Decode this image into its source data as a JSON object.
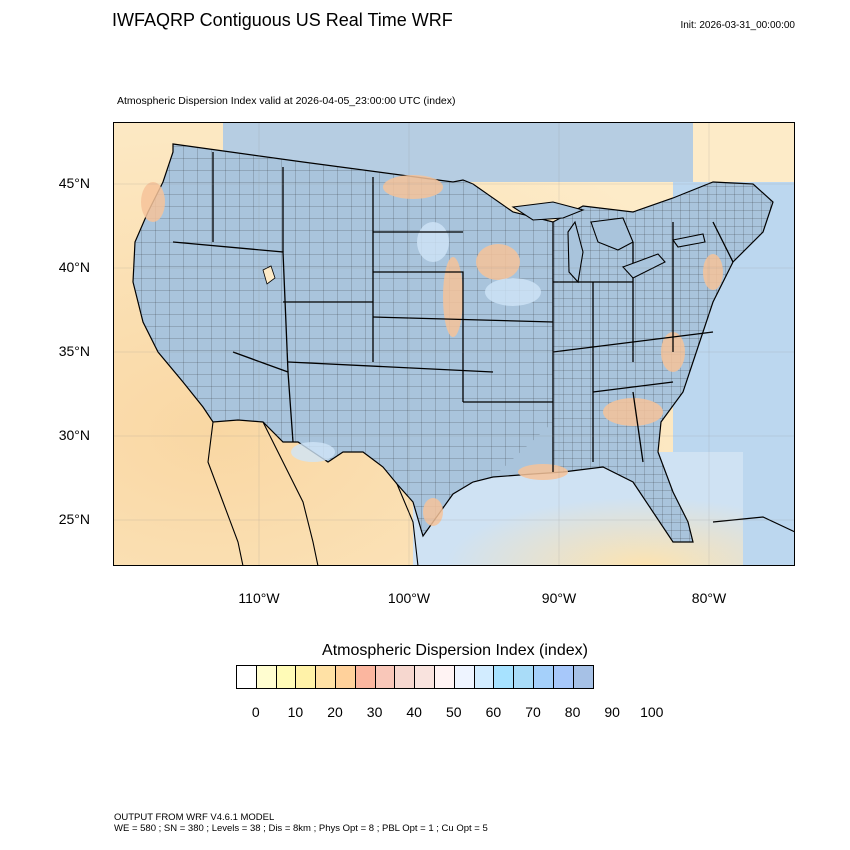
{
  "header": {
    "title": "IWFAQRP Contiguous US Real Time WRF",
    "init": "Init: 2026-03-31_00:00:00",
    "subtitle": "Atmospheric Dispersion Index valid at 2026-04-05_23:00:00 UTC   (index)"
  },
  "map": {
    "lat_labels": [
      "45°N",
      "40°N",
      "35°N",
      "30°N",
      "25°N"
    ],
    "lon_labels": [
      "110°W",
      "100°W",
      "90°W",
      "80°W"
    ],
    "colors": {
      "land": "#a9c4dc",
      "ocean_warm": "#fde6b9",
      "ocean_cool": "#bad6ef",
      "high_index": "#9fc0dd",
      "low_index": "#f6c39a",
      "border": "#000000"
    }
  },
  "legend": {
    "title": "Atmospheric Dispersion Index  (index)",
    "colors": [
      "#ffffff",
      "#fffdd0",
      "#fffbb7",
      "#fff2a8",
      "#ffe1a5",
      "#ffd19b",
      "#fbb69f",
      "#f9c7b9",
      "#f6d7cf",
      "#f9e3de",
      "#fff3f3",
      "#eef4ff",
      "#d2ecff",
      "#a7e2ff",
      "#a9dcf8",
      "#a5d0fa",
      "#a7c8fa",
      "#a6c1e6"
    ],
    "ticks": [
      "0",
      "10",
      "20",
      "30",
      "40",
      "50",
      "60",
      "70",
      "80",
      "90",
      "100"
    ]
  },
  "footer": {
    "line1": "OUTPUT FROM WRF V4.6.1 MODEL",
    "line2": "WE = 580 ; SN = 380 ; Levels = 38 ; Dis = 8km ; Phys Opt = 8 ; PBL Opt = 1 ; Cu Opt = 5"
  }
}
